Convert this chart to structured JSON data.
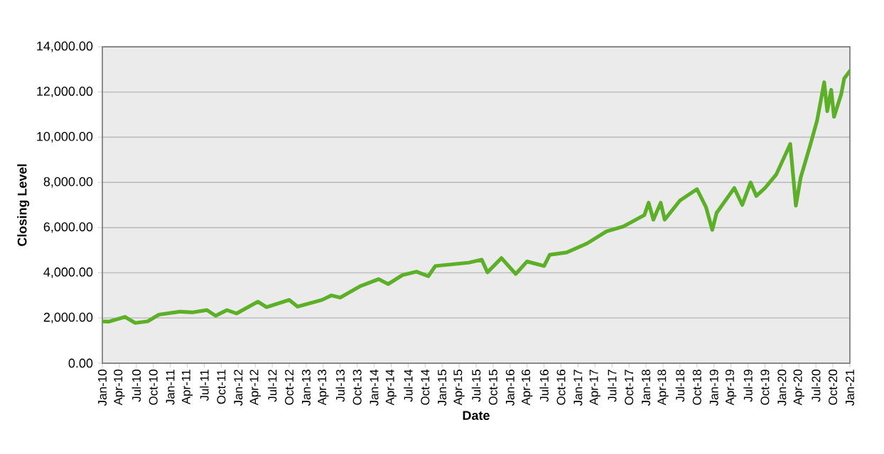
{
  "chart_data": {
    "type": "line",
    "xlabel": "Date",
    "ylabel": "Closing Level",
    "x": [
      "2010-01-01",
      "2010-02-07",
      "2010-05-01",
      "2010-06-25",
      "2010-09-01",
      "2010-11-01",
      "2011-02-21",
      "2011-05-01",
      "2011-07-15",
      "2011-09-01",
      "2011-11-01",
      "2011-12-22",
      "2012-04-15",
      "2012-06-01",
      "2012-10-01",
      "2012-11-15",
      "2013-03-25",
      "2013-05-15",
      "2013-07-01",
      "2013-10-15",
      "2014-01-25",
      "2014-03-15",
      "2014-06-01",
      "2014-08-15",
      "2014-10-18",
      "2014-11-25",
      "2015-01-01",
      "2015-05-22",
      "2015-08-01",
      "2015-09-01",
      "2015-11-15",
      "2016-02-01",
      "2016-04-01",
      "2016-07-01",
      "2016-08-01",
      "2016-11-01",
      "2017-02-19",
      "2017-06-01",
      "2017-09-01",
      "2017-12-22",
      "2018-01-15",
      "2018-02-10",
      "2018-03-19",
      "2018-04-10",
      "2018-07-01",
      "2018-10-01",
      "2018-11-19",
      "2018-12-22",
      "2019-01-15",
      "2019-04-19",
      "2019-06-01",
      "2019-07-15",
      "2019-08-15",
      "2019-10-01",
      "2019-12-01",
      "2020-02-15",
      "2020-03-15",
      "2020-04-10",
      "2020-06-01",
      "2020-07-07",
      "2020-08-15",
      "2020-09-01",
      "2020-09-22",
      "2020-10-07",
      "2020-11-15",
      "2020-12-01",
      "2021-01-01"
    ],
    "series": [
      {
        "color": "#5cb027",
        "values": [
          1850,
          1840,
          2050,
          1780,
          1850,
          2150,
          2280,
          2250,
          2350,
          2100,
          2350,
          2200,
          2720,
          2480,
          2800,
          2500,
          2800,
          3000,
          2900,
          3400,
          3720,
          3500,
          3900,
          4050,
          3850,
          4300,
          4330,
          4450,
          4580,
          4020,
          4650,
          3950,
          4500,
          4300,
          4800,
          4900,
          5300,
          5830,
          6050,
          6550,
          7100,
          6350,
          7100,
          6350,
          7200,
          7700,
          6900,
          5900,
          6650,
          7750,
          7000,
          8000,
          7400,
          7750,
          8350,
          9700,
          6970,
          8200,
          9650,
          10730,
          12430,
          11150,
          12100,
          10900,
          11900,
          12600,
          12930
        ]
      }
    ],
    "xlim": [
      "2010-01",
      "2021-01"
    ],
    "xticks": [
      {
        "value": "2010-01",
        "label": "Jan-10"
      },
      {
        "value": "2010-04",
        "label": "Apr-10"
      },
      {
        "value": "2010-07",
        "label": "Jul-10"
      },
      {
        "value": "2010-10",
        "label": "Oct-10"
      },
      {
        "value": "2011-01",
        "label": "Jan-11"
      },
      {
        "value": "2011-04",
        "label": "Apr-11"
      },
      {
        "value": "2011-07",
        "label": "Jul-11"
      },
      {
        "value": "2011-10",
        "label": "Oct-11"
      },
      {
        "value": "2012-01",
        "label": "Jan-12"
      },
      {
        "value": "2012-04",
        "label": "Apr-12"
      },
      {
        "value": "2012-07",
        "label": "Jul-12"
      },
      {
        "value": "2012-10",
        "label": "Oct-12"
      },
      {
        "value": "2013-01",
        "label": "Jan-13"
      },
      {
        "value": "2013-04",
        "label": "Apr-13"
      },
      {
        "value": "2013-07",
        "label": "Jul-13"
      },
      {
        "value": "2013-10",
        "label": "Oct-13"
      },
      {
        "value": "2014-01",
        "label": "Jan-14"
      },
      {
        "value": "2014-04",
        "label": "Apr-14"
      },
      {
        "value": "2014-07",
        "label": "Jul-14"
      },
      {
        "value": "2014-10",
        "label": "Oct-14"
      },
      {
        "value": "2015-01",
        "label": "Jan-15"
      },
      {
        "value": "2015-04",
        "label": "Apr-15"
      },
      {
        "value": "2015-07",
        "label": "Jul-15"
      },
      {
        "value": "2015-10",
        "label": "Oct-15"
      },
      {
        "value": "2016-01",
        "label": "Jan-16"
      },
      {
        "value": "2016-04",
        "label": "Apr-16"
      },
      {
        "value": "2016-07",
        "label": "Jul-16"
      },
      {
        "value": "2016-10",
        "label": "Oct-16"
      },
      {
        "value": "2017-01",
        "label": "Jan-17"
      },
      {
        "value": "2017-04",
        "label": "Apr-17"
      },
      {
        "value": "2017-07",
        "label": "Jul-17"
      },
      {
        "value": "2017-10",
        "label": "Oct-17"
      },
      {
        "value": "2018-01",
        "label": "Jan-18"
      },
      {
        "value": "2018-04",
        "label": "Apr-18"
      },
      {
        "value": "2018-07",
        "label": "Jul-18"
      },
      {
        "value": "2018-10",
        "label": "Oct-18"
      },
      {
        "value": "2019-01",
        "label": "Jan-19"
      },
      {
        "value": "2019-04",
        "label": "Apr-19"
      },
      {
        "value": "2019-07",
        "label": "Jul-19"
      },
      {
        "value": "2019-10",
        "label": "Oct-19"
      },
      {
        "value": "2020-01",
        "label": "Jan-20"
      },
      {
        "value": "2020-04",
        "label": "Apr-20"
      },
      {
        "value": "2020-07",
        "label": "Jul-20"
      },
      {
        "value": "2020-10",
        "label": "Oct-20"
      },
      {
        "value": "2021-01",
        "label": "Jan-21"
      }
    ],
    "ylim": [
      0,
      14000
    ],
    "yticks": [
      {
        "value": 0,
        "label": "0.00"
      },
      {
        "value": 2000,
        "label": "2,000.00"
      },
      {
        "value": 4000,
        "label": "4,000.00"
      },
      {
        "value": 6000,
        "label": "6,000.00"
      },
      {
        "value": 8000,
        "label": "8,000.00"
      },
      {
        "value": 10000,
        "label": "10,000.00"
      },
      {
        "value": 12000,
        "label": "12,000.00"
      },
      {
        "value": 14000,
        "label": "14,000.00"
      }
    ],
    "grid": "y",
    "marker": "none",
    "line_style": "solid"
  }
}
